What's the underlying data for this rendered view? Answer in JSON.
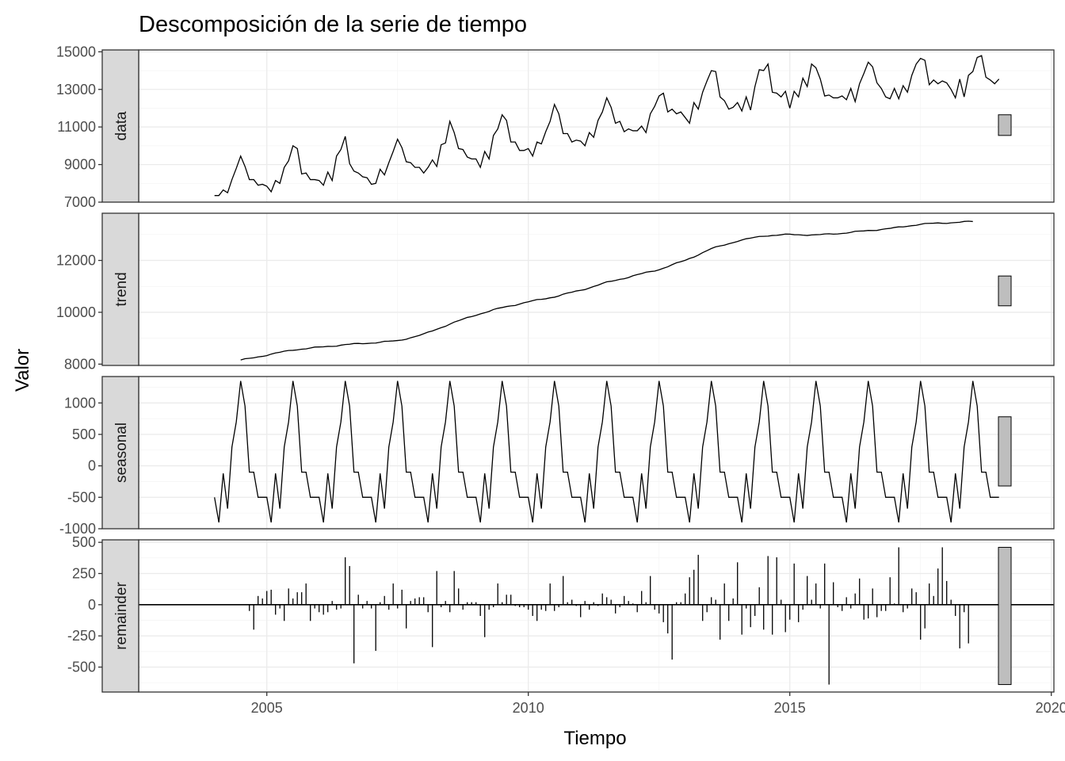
{
  "chart_data": {
    "type": "line",
    "title": "Descomposición de la serie de tiempo",
    "xlabel": "Tiempo",
    "ylabel": "Valor",
    "xlim": [
      2002.55,
      2020.05
    ],
    "x_ticks": [
      2005,
      2010,
      2015,
      2020
    ],
    "x_tick_labels": [
      "2005",
      "2010",
      "2015",
      "2020"
    ],
    "grid": true,
    "start": 2004.0,
    "frequency": 12,
    "panels": [
      {
        "name": "data",
        "kind": "line",
        "ylim": [
          7000,
          15100
        ],
        "y_ticks": [
          7000,
          9000,
          11000,
          13000,
          15000
        ],
        "y_tick_labels": [
          "7000",
          "9000",
          "11000",
          "13000",
          "15000"
        ],
        "values": [
          7350,
          7350,
          7650,
          7500,
          8200,
          8800,
          9450,
          8900,
          8200,
          8200,
          7900,
          7950,
          7850,
          7550,
          8150,
          8000,
          8850,
          9200,
          10000,
          9850,
          8500,
          8550,
          8200,
          8200,
          8150,
          7900,
          8600,
          8150,
          9450,
          9800,
          10500,
          9050,
          8650,
          8550,
          8350,
          8300,
          7950,
          8000,
          8750,
          8450,
          9100,
          9700,
          10350,
          9900,
          9150,
          9100,
          8850,
          8850,
          8550,
          8850,
          9250,
          8900,
          10050,
          10150,
          11300,
          10700,
          9850,
          9800,
          9400,
          9300,
          9300,
          8850,
          9700,
          9300,
          10550,
          10900,
          11650,
          11350,
          10200,
          10200,
          9750,
          9750,
          9850,
          9450,
          10200,
          10100,
          10750,
          11300,
          12200,
          11700,
          10650,
          10650,
          10200,
          10300,
          10250,
          10000,
          10700,
          10450,
          11350,
          11800,
          12550,
          12050,
          11200,
          11300,
          10750,
          10900,
          10800,
          10800,
          11050,
          10700,
          11700,
          12100,
          12650,
          12800,
          11800,
          11950,
          11700,
          11800,
          11500,
          11200,
          12300,
          11950,
          12850,
          13450,
          14000,
          13950,
          12600,
          12400,
          11950,
          12050,
          12300,
          11850,
          12600,
          11900,
          13150,
          14050,
          14000,
          14350,
          12850,
          12800,
          12600,
          12900,
          12000,
          12900,
          12600,
          13600,
          13150,
          14350,
          14150,
          13550,
          12650,
          12700,
          12550,
          12550,
          12650,
          12450,
          13050,
          12350,
          13300,
          13850,
          14450,
          14200,
          13350,
          13050,
          12600,
          12500,
          13050,
          12500,
          13200,
          12850,
          13750,
          14350,
          14650,
          14550,
          13250,
          13500,
          13300,
          13450,
          13350,
          13000,
          12550,
          13550,
          12600,
          13750,
          13950,
          14700,
          14800,
          13650,
          13500,
          13300,
          13550
        ],
        "range_bar": [
          10550,
          11650
        ]
      },
      {
        "name": "trend",
        "kind": "line",
        "ylim": [
          7950,
          13820
        ],
        "y_ticks": [
          8000,
          10000,
          12000
        ],
        "y_tick_labels": [
          "8000",
          "10000",
          "12000"
        ],
        "trend_start": 2004.5,
        "trend_knots": [
          [
            2004.5,
            8150
          ],
          [
            2005.0,
            8350
          ],
          [
            2005.5,
            8550
          ],
          [
            2006.0,
            8650
          ],
          [
            2006.5,
            8750
          ],
          [
            2007.0,
            8820
          ],
          [
            2007.5,
            8900
          ],
          [
            2008.0,
            9150
          ],
          [
            2008.5,
            9550
          ],
          [
            2009.0,
            9900
          ],
          [
            2009.5,
            10180
          ],
          [
            2010.0,
            10400
          ],
          [
            2010.5,
            10600
          ],
          [
            2011.0,
            10850
          ],
          [
            2011.5,
            11150
          ],
          [
            2012.0,
            11400
          ],
          [
            2012.5,
            11650
          ],
          [
            2013.0,
            12000
          ],
          [
            2013.5,
            12450
          ],
          [
            2014.0,
            12750
          ],
          [
            2014.5,
            12950
          ],
          [
            2015.0,
            13000
          ],
          [
            2015.5,
            12980
          ],
          [
            2016.0,
            13050
          ],
          [
            2016.5,
            13150
          ],
          [
            2017.0,
            13250
          ],
          [
            2017.5,
            13400
          ],
          [
            2018.0,
            13450
          ],
          [
            2018.5,
            13500
          ]
        ],
        "range_bar": [
          10250,
          11400
        ]
      },
      {
        "name": "seasonal",
        "kind": "line",
        "ylim": [
          -1000,
          1420
        ],
        "y_ticks": [
          -1000,
          -500,
          0,
          500,
          1000
        ],
        "y_tick_labels": [
          "-1000",
          "-500",
          "0",
          "500",
          "1000"
        ],
        "pattern": [
          -500,
          -900,
          -120,
          -680,
          300,
          700,
          1350,
          950,
          -100,
          -100,
          -500,
          -500
        ],
        "range_bar": [
          -320,
          780
        ]
      },
      {
        "name": "remainder",
        "kind": "bar",
        "ylim": [
          -700,
          520
        ],
        "y_ticks": [
          -500,
          -250,
          0,
          250,
          500
        ],
        "y_tick_labels": [
          "-500",
          "-250",
          "0",
          "250",
          "500"
        ],
        "values": [
          0,
          0,
          0,
          0,
          0,
          0,
          0,
          0,
          -50,
          -200,
          70,
          50,
          110,
          120,
          -80,
          -30,
          -130,
          130,
          50,
          100,
          100,
          170,
          -130,
          -30,
          -60,
          -80,
          -60,
          30,
          -40,
          -30,
          380,
          310,
          -470,
          80,
          -30,
          30,
          -30,
          -370,
          20,
          70,
          -40,
          170,
          -30,
          120,
          -190,
          30,
          50,
          60,
          60,
          -60,
          -340,
          270,
          -20,
          30,
          -60,
          270,
          130,
          -40,
          20,
          20,
          20,
          -90,
          -260,
          -40,
          -20,
          170,
          20,
          80,
          80,
          -10,
          -20,
          -20,
          -40,
          -90,
          -130,
          -40,
          -50,
          170,
          -50,
          -20,
          230,
          20,
          40,
          -10,
          -100,
          30,
          -40,
          20,
          -10,
          90,
          60,
          40,
          -70,
          -20,
          70,
          30,
          10,
          -60,
          110,
          20,
          230,
          -40,
          -70,
          -140,
          -230,
          -440,
          20,
          20,
          90,
          220,
          280,
          400,
          -130,
          -60,
          60,
          40,
          -280,
          170,
          -130,
          50,
          340,
          -240,
          -30,
          -180,
          -90,
          140,
          -200,
          390,
          -240,
          380,
          40,
          -220,
          -120,
          330,
          -140,
          -40,
          230,
          40,
          170,
          -30,
          330,
          -640,
          180,
          -20,
          -50,
          60,
          -30,
          90,
          210,
          -120,
          -110,
          130,
          -100,
          -50,
          -50,
          220,
          10,
          460,
          -60,
          -30,
          130,
          100,
          -280,
          -190,
          170,
          70,
          290,
          460,
          190,
          40,
          -90,
          -350,
          -60,
          -310,
          0,
          0,
          0,
          0,
          0,
          0,
          0
        ],
        "range_bar": [
          -640,
          460
        ]
      }
    ]
  }
}
